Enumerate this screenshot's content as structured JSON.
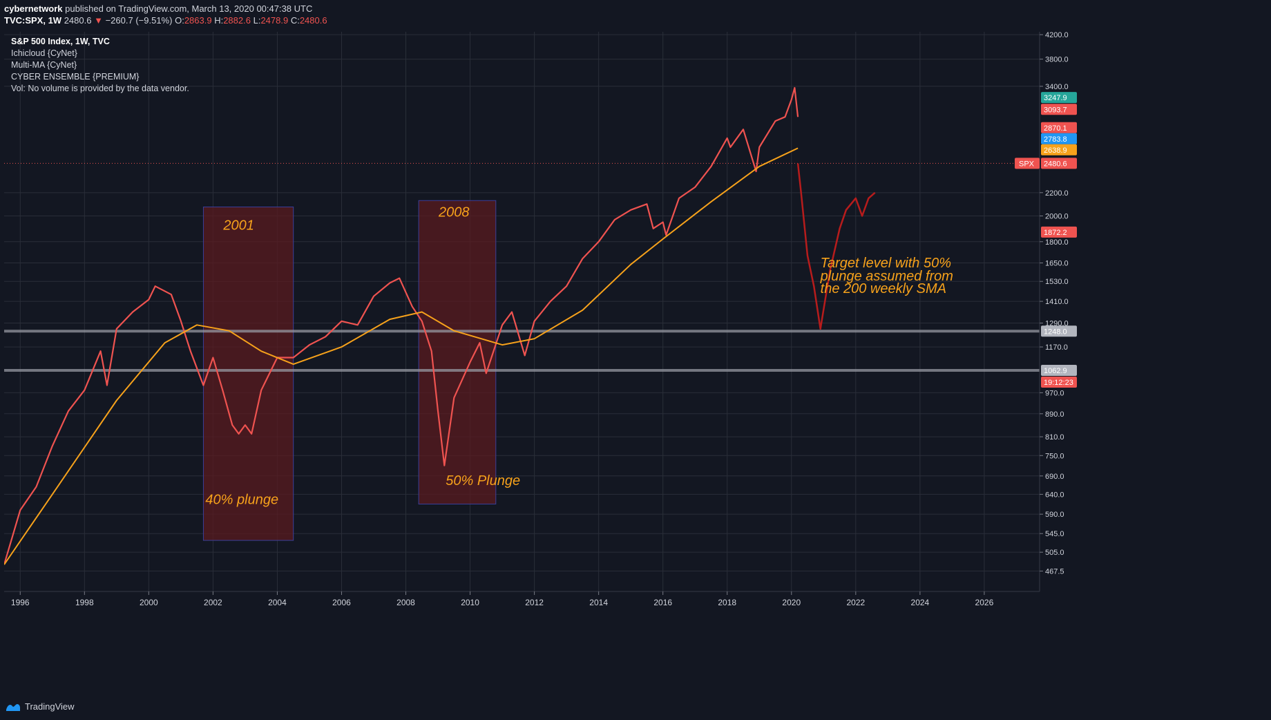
{
  "header": {
    "author": "cybernetwork",
    "published_text": "published on TradingView.com, March 13, 2020 00:47:38 UTC",
    "symbol": "TVC:SPX, 1W",
    "last": "2480.6",
    "change": "−260.7 (−9.51%)",
    "ohlc": [
      {
        "label": "O:",
        "value": "2863.9"
      },
      {
        "label": "H:",
        "value": "2882.6"
      },
      {
        "label": "L:",
        "value": "2478.9"
      },
      {
        "label": "C:",
        "value": "2480.6"
      }
    ]
  },
  "legend": {
    "items": [
      "S&P 500 Index, 1W, TVC",
      "Ichicloud {CyNet}",
      "Multi-MA {CyNet}",
      "CYBER ENSEMBLE {PREMIUM}",
      "Vol: No volume is provided by the data vendor."
    ]
  },
  "footer": {
    "brand": "TradingView"
  },
  "colors": {
    "background": "#131722",
    "grid": "#2a2e39",
    "up_candle": "#4caf50",
    "down_candle": "#ef5350",
    "sma_200": "#f7a21b",
    "ma_fast": "#26c6da",
    "ma_mid": "#2962ff",
    "buy_marker": "#2196f3",
    "sell_marker": "#ff9800",
    "doji_marker": "#787b86",
    "annotation_text": "#f7a21b",
    "highlight_box": "#5c1a1f"
  },
  "chart_data": {
    "type": "line",
    "scale": "log",
    "x_range": [
      1995.5,
      2027.7
    ],
    "y_range": [
      430,
      4250
    ],
    "x_ticks": [
      "1996",
      "1998",
      "2000",
      "2002",
      "2004",
      "2006",
      "2008",
      "2010",
      "2012",
      "2014",
      "2016",
      "2018",
      "2020",
      "2022",
      "2024",
      "2026"
    ],
    "y_ticks": [
      "4200.0",
      "3800.0",
      "3400.0",
      "2200.0",
      "2000.0",
      "1800.0",
      "1650.0",
      "1530.0",
      "1410.0",
      "1290.0",
      "1170.0",
      "970.0",
      "890.0",
      "810.0",
      "750.0",
      "690.0",
      "640.0",
      "590.0",
      "545.0",
      "505.0",
      "467.5"
    ],
    "price_tags": [
      {
        "label": "",
        "value": "3247.9",
        "color": "#26a69a"
      },
      {
        "label": "",
        "value": "3093.7",
        "color": "#ef5350"
      },
      {
        "label": "",
        "value": "2870.1",
        "color": "#ef5350"
      },
      {
        "label": "",
        "value": "2783.8",
        "color": "#2196f3"
      },
      {
        "label": "",
        "value": "2638.9",
        "color": "#f7a21b"
      },
      {
        "label": "SPX",
        "value": "2480.6",
        "color": "#ef5350"
      },
      {
        "label": "",
        "value": "19:12:23",
        "color": "#ef5350"
      },
      {
        "label": "",
        "value": "1872.2",
        "color": "#ef5350"
      },
      {
        "label": "",
        "value": "1248.0",
        "color": "#b2b5be"
      },
      {
        "label": "",
        "value": "1062.9",
        "color": "#b2b5be"
      }
    ],
    "horizontal_levels": [
      1248.0,
      1062.9
    ],
    "series": [
      {
        "x": [
          1995.5,
          1996.0,
          1996.5,
          1997.0,
          1997.5,
          1998.0,
          1998.5,
          1998.7,
          1999.0,
          1999.5,
          2000.0,
          2000.2,
          2000.7,
          2001.0,
          2001.3,
          2001.7,
          2002.0,
          2002.3,
          2002.6,
          2002.8,
          2003.0,
          2003.2,
          2003.5,
          2004.0,
          2004.5,
          2005.0,
          2005.5,
          2006.0,
          2006.5,
          2007.0,
          2007.5,
          2007.8,
          2008.2,
          2008.5,
          2008.8,
          2009.0,
          2009.2,
          2009.5,
          2010.0,
          2010.3,
          2010.5,
          2011.0,
          2011.3,
          2011.7,
          2012.0,
          2012.5,
          2013.0,
          2013.5,
          2014.0,
          2014.5,
          2015.0,
          2015.5,
          2015.7,
          2016.0,
          2016.1,
          2016.5,
          2017.0,
          2017.5,
          2018.0,
          2018.1,
          2018.5,
          2018.9,
          2019.0,
          2019.5,
          2019.8,
          2020.0,
          2020.1,
          2020.2
        ],
        "y": [
          480,
          600,
          660,
          780,
          900,
          980,
          1150,
          1000,
          1260,
          1350,
          1420,
          1500,
          1450,
          1300,
          1150,
          1000,
          1120,
          980,
          850,
          820,
          850,
          820,
          980,
          1120,
          1120,
          1180,
          1220,
          1300,
          1280,
          1440,
          1520,
          1550,
          1380,
          1300,
          1150,
          900,
          720,
          950,
          1100,
          1190,
          1050,
          1280,
          1350,
          1130,
          1300,
          1410,
          1500,
          1680,
          1800,
          1970,
          2050,
          2100,
          1900,
          1950,
          1850,
          2150,
          2250,
          2450,
          2750,
          2650,
          2850,
          2400,
          2650,
          2950,
          3000,
          3220,
          3380,
          3000
        ]
      },
      {
        "x": [
          1995.5,
          1997.0,
          1999.0,
          2000.5,
          2001.5,
          2002.5,
          2003.5,
          2004.5,
          2006.0,
          2007.5,
          2008.5,
          2009.5,
          2011.0,
          2012.0,
          2013.5,
          2015.0,
          2016.0,
          2017.5,
          2019.0,
          2020.2
        ],
        "y": [
          480,
          640,
          940,
          1190,
          1280,
          1250,
          1150,
          1090,
          1170,
          1310,
          1350,
          1250,
          1180,
          1210,
          1360,
          1640,
          1820,
          2120,
          2450,
          2640
        ]
      },
      {
        "x": [
          2020.2,
          2020.3,
          2020.5,
          2020.7,
          2020.9,
          2021.2,
          2021.5,
          2021.7,
          2022.0,
          2022.2,
          2022.4,
          2022.6
        ],
        "y": [
          2480,
          2200,
          1700,
          1500,
          1260,
          1600,
          1900,
          2050,
          2150,
          2000,
          2150,
          2200
        ]
      }
    ],
    "annotations": [
      {
        "text": "2001",
        "x": 2002.8,
        "y": 1890
      },
      {
        "text": "40% plunge",
        "x": 2002.9,
        "y": 615
      },
      {
        "text": "2008",
        "x": 2009.5,
        "y": 1995
      },
      {
        "text": "50% Plunge",
        "x": 2010.4,
        "y": 665
      },
      {
        "text": "Target level with 50%",
        "x": 2021.8,
        "y": 1620
      },
      {
        "text": "plunge assumed from",
        "x": 2021.8,
        "y": 1535
      },
      {
        "text": "the 200 weekly SMA",
        "x": 2021.8,
        "y": 1460
      }
    ],
    "highlight_boxes": [
      {
        "x": [
          2001.7,
          2004.5
        ],
        "y": [
          530,
          2075
        ]
      },
      {
        "x": [
          2008.4,
          2010.8
        ],
        "y": [
          615,
          2130
        ]
      }
    ]
  }
}
